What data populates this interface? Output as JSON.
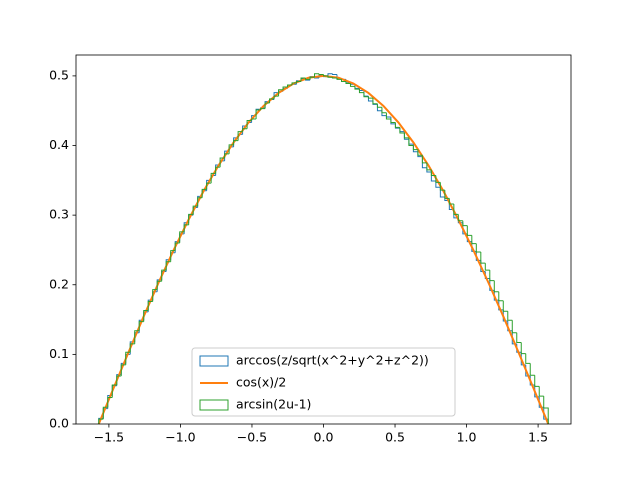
{
  "chart_data": {
    "type": "histogram",
    "bins": [
      -1.5708,
      -1.5394,
      -1.508,
      -1.4765,
      -1.4451,
      -1.4137,
      -1.3823,
      -1.3509,
      -1.3195,
      -1.2881,
      -1.2566,
      -1.2252,
      -1.1938,
      -1.1624,
      -1.131,
      -1.0996,
      -1.0681,
      -1.0367,
      -1.0053,
      -0.9739,
      -0.9425,
      -0.9111,
      -0.8796,
      -0.8482,
      -0.8168,
      -0.7854,
      -0.754,
      -0.7226,
      -0.6912,
      -0.6597,
      -0.6283,
      -0.5969,
      -0.5655,
      -0.5341,
      -0.5027,
      -0.4712,
      -0.4398,
      -0.4084,
      -0.377,
      -0.3456,
      -0.3142,
      -0.2827,
      -0.2513,
      -0.2199,
      -0.1885,
      -0.1571,
      -0.1257,
      -0.0942,
      -0.0628,
      -0.0314,
      0,
      0.0314,
      0.0628,
      0.0942,
      0.1257,
      0.1571,
      0.1885,
      0.2199,
      0.2513,
      0.2827,
      0.3142,
      0.3456,
      0.377,
      0.4084,
      0.4398,
      0.4712,
      0.5027,
      0.5341,
      0.5655,
      0.5969,
      0.6283,
      0.6597,
      0.6912,
      0.7226,
      0.754,
      0.7854,
      0.8168,
      0.8482,
      0.8796,
      0.9111,
      0.9425,
      0.9739,
      1.0053,
      1.0367,
      1.0681,
      1.0996,
      1.131,
      1.1624,
      1.1938,
      1.2252,
      1.2566,
      1.2881,
      1.3195,
      1.3509,
      1.3823,
      1.4137,
      1.4451,
      1.4765,
      1.508,
      1.5394,
      1.5708
    ],
    "series": [
      {
        "name": "arccos(z/sqrt(x^2+y^2+z^2))",
        "color": "#1f77b4",
        "values": [
          0.008,
          0.022,
          0.041,
          0.055,
          0.071,
          0.087,
          0.1,
          0.118,
          0.131,
          0.149,
          0.161,
          0.178,
          0.19,
          0.207,
          0.219,
          0.236,
          0.246,
          0.262,
          0.273,
          0.289,
          0.3,
          0.311,
          0.327,
          0.335,
          0.35,
          0.357,
          0.372,
          0.378,
          0.392,
          0.398,
          0.411,
          0.416,
          0.428,
          0.433,
          0.443,
          0.452,
          0.454,
          0.463,
          0.466,
          0.476,
          0.478,
          0.482,
          0.487,
          0.488,
          0.493,
          0.496,
          0.494,
          0.499,
          0.497,
          0.501,
          0.499,
          0.503,
          0.502,
          0.496,
          0.495,
          0.49,
          0.488,
          0.482,
          0.479,
          0.471,
          0.464,
          0.459,
          0.45,
          0.443,
          0.441,
          0.431,
          0.425,
          0.42,
          0.409,
          0.402,
          0.391,
          0.384,
          0.368,
          0.362,
          0.349,
          0.34,
          0.326,
          0.321,
          0.308,
          0.296,
          0.289,
          0.273,
          0.262,
          0.248,
          0.235,
          0.219,
          0.209,
          0.192,
          0.178,
          0.164,
          0.148,
          0.134,
          0.115,
          0.103,
          0.085,
          0.069,
          0.056,
          0.039,
          0.024,
          0.007
        ]
      },
      {
        "name": "cos(x)/2",
        "color": "#ff7f0e",
        "type": "line",
        "x": [
          -1.571,
          -1.466,
          -1.361,
          -1.257,
          -1.152,
          -1.047,
          -0.942,
          -0.838,
          -0.733,
          -0.628,
          -0.524,
          -0.419,
          -0.314,
          -0.209,
          -0.105,
          0,
          0.105,
          0.209,
          0.314,
          0.419,
          0.524,
          0.628,
          0.733,
          0.838,
          0.942,
          1.047,
          1.152,
          1.257,
          1.361,
          1.466,
          1.571
        ],
        "values": [
          0,
          0.0523,
          0.104,
          0.1545,
          0.2034,
          0.25,
          0.2939,
          0.3346,
          0.3716,
          0.4045,
          0.433,
          0.4568,
          0.4755,
          0.4891,
          0.4973,
          0.5,
          0.4973,
          0.4891,
          0.4755,
          0.4568,
          0.433,
          0.4045,
          0.3716,
          0.3346,
          0.2939,
          0.25,
          0.2034,
          0.1545,
          0.104,
          0.0523,
          0
        ]
      },
      {
        "name": "arcsin(2u-1)",
        "color": "#2ca02c",
        "values": [
          0.007,
          0.024,
          0.038,
          0.056,
          0.069,
          0.085,
          0.103,
          0.115,
          0.134,
          0.147,
          0.163,
          0.176,
          0.193,
          0.205,
          0.221,
          0.233,
          0.249,
          0.26,
          0.276,
          0.286,
          0.301,
          0.313,
          0.325,
          0.337,
          0.346,
          0.36,
          0.369,
          0.382,
          0.388,
          0.401,
          0.407,
          0.42,
          0.424,
          0.436,
          0.438,
          0.451,
          0.453,
          0.461,
          0.467,
          0.471,
          0.48,
          0.484,
          0.487,
          0.49,
          0.492,
          0.497,
          0.495,
          0.498,
          0.503,
          0.502,
          0.5,
          0.498,
          0.497,
          0.495,
          0.492,
          0.489,
          0.485,
          0.481,
          0.476,
          0.47,
          0.468,
          0.46,
          0.455,
          0.447,
          0.438,
          0.433,
          0.426,
          0.418,
          0.411,
          0.4,
          0.394,
          0.386,
          0.375,
          0.365,
          0.357,
          0.347,
          0.336,
          0.324,
          0.316,
          0.301,
          0.292,
          0.285,
          0.271,
          0.259,
          0.247,
          0.231,
          0.221,
          0.206,
          0.19,
          0.177,
          0.162,
          0.149,
          0.131,
          0.117,
          0.101,
          0.087,
          0.07,
          0.054,
          0.04,
          0.023
        ]
      }
    ],
    "xlim": [
      -1.73,
      1.73
    ],
    "ylim": [
      0,
      0.53
    ],
    "xticks": [
      {
        "value": -1.5,
        "label": "−1.5"
      },
      {
        "value": -1.0,
        "label": "−1.0"
      },
      {
        "value": -0.5,
        "label": "−0.5"
      },
      {
        "value": 0,
        "label": "0.0"
      },
      0.5,
      {
        "value": 1.0,
        "label": "1.0"
      },
      1.5
    ],
    "yticks": [
      {
        "value": 0,
        "label": "0.0"
      },
      0.1,
      0.2,
      0.3,
      0.4,
      0.5
    ],
    "legend": "lower center"
  }
}
